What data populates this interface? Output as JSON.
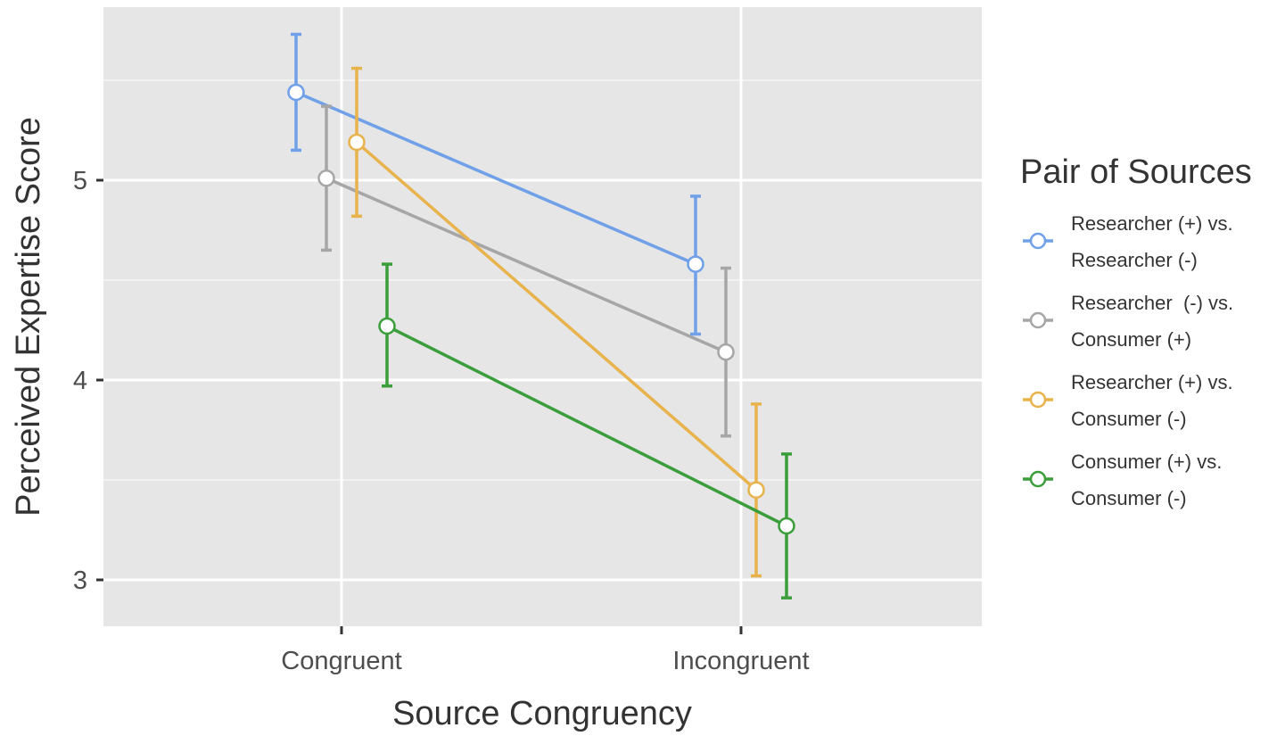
{
  "chart_data": {
    "type": "line",
    "xlabel": "Source Congruency",
    "ylabel": "Perceived Expertise Score",
    "categories": [
      "Congruent",
      "Incongruent"
    ],
    "y_ticks": [
      "3",
      "4",
      "5"
    ],
    "ylim": [
      2.75,
      5.9
    ],
    "grid": true,
    "legend": {
      "title": "Pair of Sources",
      "position": "right"
    },
    "series": [
      {
        "name": [
          "Researcher (+) vs.",
          "Researcher (-)"
        ],
        "color": "#6fa0e8",
        "values": [
          5.44,
          4.58
        ],
        "error_low": [
          5.15,
          4.23
        ],
        "error_high": [
          5.73,
          4.92
        ]
      },
      {
        "name": [
          "Researcher  (-) vs.",
          "Consumer (+)"
        ],
        "color": "#a6a6a6",
        "values": [
          5.01,
          4.14
        ],
        "error_low": [
          4.65,
          3.72
        ],
        "error_high": [
          5.37,
          4.56
        ]
      },
      {
        "name": [
          "Researcher (+) vs.",
          "Consumer (-)"
        ],
        "color": "#e8b34c",
        "values": [
          5.19,
          3.45
        ],
        "error_low": [
          4.82,
          3.02
        ],
        "error_high": [
          5.56,
          3.88
        ]
      },
      {
        "name": [
          "Consumer (+) vs.",
          "Consumer (-)"
        ],
        "color": "#3a9e3a",
        "values": [
          4.27,
          3.27
        ],
        "error_low": [
          3.97,
          2.91
        ],
        "error_high": [
          4.58,
          3.63
        ]
      }
    ]
  }
}
